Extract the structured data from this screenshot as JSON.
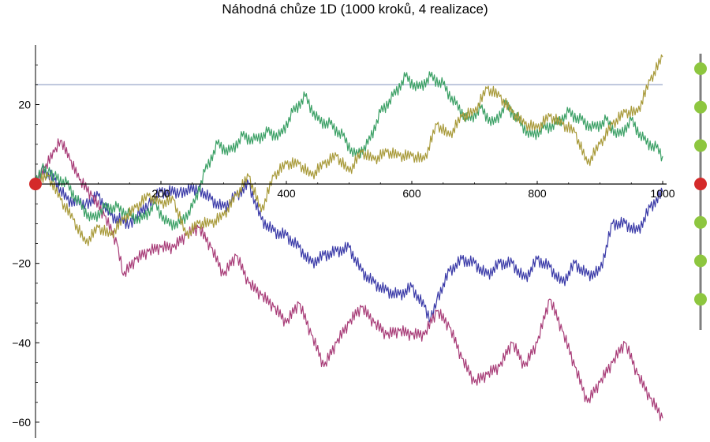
{
  "chart_data": {
    "type": "line",
    "title": "Náhodná chůze 1D (1000 kroků, 4 realizace)",
    "xlabel": "",
    "ylabel": "",
    "xlim": [
      0,
      1000
    ],
    "ylim": [
      -63,
      37
    ],
    "x_ticks": [
      {
        "value": 200,
        "label": "200"
      },
      {
        "value": 400,
        "label": "400"
      },
      {
        "value": 600,
        "label": "600"
      },
      {
        "value": 800,
        "label": "800"
      },
      {
        "value": 1000,
        "label": "1000"
      }
    ],
    "y_ticks": [
      {
        "value": 20,
        "label": "20"
      },
      {
        "value": -20,
        "label": "−20"
      },
      {
        "value": -40,
        "label": "−40"
      },
      {
        "value": -60,
        "label": "−60"
      }
    ],
    "grid": false,
    "legend": "none",
    "reference_line": {
      "y": 25,
      "color": "#aab4d2"
    },
    "start_marker": {
      "x": 0,
      "y": 0,
      "color": "#d42a2a"
    },
    "colors": {
      "axis": "#000000",
      "slider_track": "#7f7f7f",
      "slider_dot": "#8dc63f",
      "slider_active": "#d42a2a"
    },
    "series": [
      {
        "color": "#3b3ba8",
        "x": [
          0,
          10,
          30,
          50,
          80,
          100,
          120,
          150,
          180,
          200,
          230,
          260,
          280,
          300,
          320,
          340,
          360,
          380,
          400,
          420,
          440,
          460,
          480,
          500,
          520,
          540,
          560,
          580,
          600,
          620,
          630,
          640,
          660,
          680,
          700,
          720,
          740,
          760,
          780,
          800,
          820,
          840,
          860,
          880,
          900,
          920,
          940,
          960,
          980,
          1000
        ],
        "y": [
          0,
          4,
          1,
          -4,
          -5,
          -3,
          -8,
          -10,
          -5,
          -2,
          -2,
          -1,
          -4,
          -6,
          -3,
          0,
          -9,
          -12,
          -13,
          -16,
          -20,
          -18,
          -17,
          -16,
          -22,
          -25,
          -27,
          -28,
          -26,
          -31,
          -34,
          -29,
          -22,
          -19,
          -20,
          -23,
          -20,
          -20,
          -24,
          -19,
          -21,
          -25,
          -20,
          -23,
          -22,
          -10,
          -10,
          -12,
          -6,
          -2
        ]
      },
      {
        "color": "#a83d78",
        "x": [
          0,
          15,
          30,
          40,
          55,
          70,
          90,
          110,
          130,
          140,
          160,
          180,
          200,
          220,
          240,
          260,
          280,
          300,
          320,
          340,
          360,
          380,
          400,
          420,
          440,
          460,
          480,
          500,
          520,
          540,
          560,
          580,
          600,
          620,
          640,
          660,
          680,
          700,
          720,
          740,
          760,
          780,
          800,
          820,
          840,
          860,
          880,
          900,
          920,
          940,
          960,
          980,
          1000
        ],
        "y": [
          0,
          4,
          8,
          11,
          6,
          1,
          -3,
          -8,
          -15,
          -23,
          -19,
          -17,
          -16,
          -16,
          -13,
          -11,
          -16,
          -23,
          -18,
          -25,
          -28,
          -31,
          -35,
          -30,
          -38,
          -46,
          -40,
          -35,
          -31,
          -35,
          -38,
          -37,
          -38,
          -38,
          -32,
          -36,
          -44,
          -50,
          -48,
          -46,
          -40,
          -46,
          -40,
          -29,
          -37,
          -46,
          -55,
          -50,
          -45,
          -40,
          -48,
          -54,
          -59
        ]
      },
      {
        "color": "#3ba065",
        "x": [
          0,
          10,
          20,
          30,
          50,
          70,
          90,
          110,
          130,
          150,
          170,
          190,
          210,
          230,
          250,
          270,
          290,
          310,
          330,
          350,
          370,
          390,
          410,
          430,
          450,
          470,
          490,
          510,
          530,
          550,
          570,
          590,
          610,
          630,
          650,
          670,
          690,
          710,
          730,
          750,
          770,
          790,
          810,
          830,
          850,
          870,
          890,
          910,
          930,
          950,
          970,
          990,
          1000
        ],
        "y": [
          0,
          4,
          3,
          2,
          0,
          -5,
          -9,
          -6,
          -6,
          -8,
          -9,
          -5,
          -10,
          -10,
          -6,
          3,
          10,
          8,
          12,
          11,
          13,
          12,
          18,
          22,
          16,
          15,
          12,
          7,
          10,
          18,
          22,
          27,
          24,
          27,
          25,
          20,
          16,
          19,
          15,
          20,
          16,
          12,
          14,
          15,
          18,
          16,
          14,
          16,
          12,
          16,
          11,
          9,
          7
        ]
      },
      {
        "color": "#a89a3a",
        "x": [
          0,
          20,
          40,
          60,
          80,
          100,
          120,
          140,
          160,
          180,
          200,
          220,
          240,
          260,
          280,
          300,
          320,
          340,
          360,
          380,
          400,
          420,
          440,
          460,
          480,
          500,
          520,
          540,
          560,
          580,
          600,
          620,
          640,
          660,
          680,
          700,
          720,
          740,
          760,
          780,
          800,
          820,
          840,
          860,
          880,
          900,
          920,
          940,
          960,
          980,
          1000
        ],
        "y": [
          0,
          2,
          -4,
          -9,
          -15,
          -11,
          -13,
          -9,
          -6,
          -3,
          -5,
          -4,
          -13,
          -10,
          -10,
          -8,
          -3,
          2,
          -7,
          2,
          5,
          5,
          2,
          5,
          7,
          3,
          8,
          6,
          8,
          7,
          7,
          6,
          15,
          12,
          17,
          18,
          24,
          22,
          18,
          15,
          14,
          17,
          15,
          13,
          5,
          10,
          15,
          18,
          18,
          26,
          32
        ]
      }
    ]
  },
  "slider": {
    "dot_count": 7,
    "active_index": 3
  }
}
